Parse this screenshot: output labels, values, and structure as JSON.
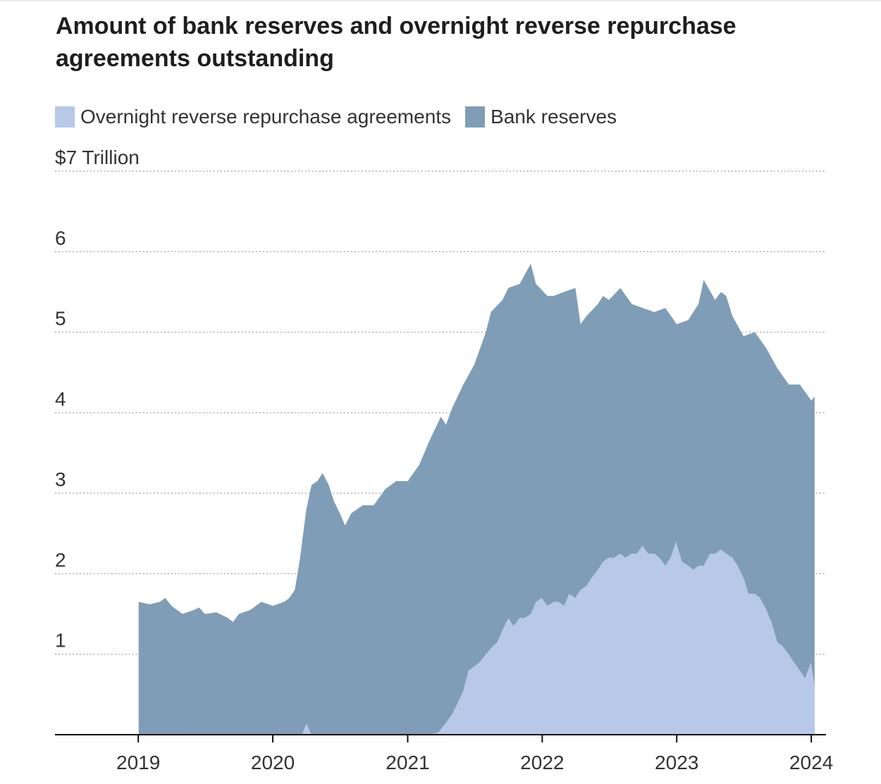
{
  "chart_data": {
    "type": "area",
    "stacked": true,
    "title": "Amount of bank reserves and overnight reverse repurchase agreements outstanding",
    "xlabel": "",
    "ylabel": "",
    "y_unit_label": "$7 Trillion",
    "xlim": [
      "2018-05-20",
      "2024-02-10"
    ],
    "ylim": [
      0,
      7
    ],
    "x_ticks": [
      "2019",
      "2020",
      "2021",
      "2022",
      "2023",
      "2024"
    ],
    "y_ticks": [
      "1",
      "2",
      "3",
      "4",
      "5",
      "6"
    ],
    "grid": true,
    "legend_position": "top-left",
    "series": [
      {
        "name": "Overnight reverse repurchase agreements",
        "color": "#b8c8e8",
        "points": [
          [
            "2019-01-02",
            0
          ],
          [
            "2019-06-01",
            0.01
          ],
          [
            "2019-12-31",
            0.01
          ],
          [
            "2020-03-20",
            0
          ],
          [
            "2020-04-01",
            0.14
          ],
          [
            "2020-04-15",
            0
          ],
          [
            "2021-03-01",
            0
          ],
          [
            "2021-03-25",
            0.03
          ],
          [
            "2021-04-15",
            0.15
          ],
          [
            "2021-05-01",
            0.25
          ],
          [
            "2021-05-15",
            0.38
          ],
          [
            "2021-06-01",
            0.55
          ],
          [
            "2021-06-15",
            0.8
          ],
          [
            "2021-07-01",
            0.85
          ],
          [
            "2021-07-15",
            0.9
          ],
          [
            "2021-08-01",
            1.0
          ],
          [
            "2021-08-20",
            1.1
          ],
          [
            "2021-09-01",
            1.15
          ],
          [
            "2021-09-15",
            1.3
          ],
          [
            "2021-10-01",
            1.45
          ],
          [
            "2021-10-15",
            1.35
          ],
          [
            "2021-11-01",
            1.45
          ],
          [
            "2021-11-15",
            1.45
          ],
          [
            "2021-12-01",
            1.5
          ],
          [
            "2021-12-15",
            1.65
          ],
          [
            "2021-12-31",
            1.7
          ],
          [
            "2022-01-15",
            1.6
          ],
          [
            "2022-02-01",
            1.65
          ],
          [
            "2022-02-15",
            1.65
          ],
          [
            "2022-03-01",
            1.6
          ],
          [
            "2022-03-15",
            1.75
          ],
          [
            "2022-04-01",
            1.7
          ],
          [
            "2022-04-15",
            1.8
          ],
          [
            "2022-05-01",
            1.85
          ],
          [
            "2022-05-15",
            1.95
          ],
          [
            "2022-06-01",
            2.05
          ],
          [
            "2022-06-15",
            2.15
          ],
          [
            "2022-07-01",
            2.2
          ],
          [
            "2022-07-15",
            2.2
          ],
          [
            "2022-08-01",
            2.25
          ],
          [
            "2022-08-15",
            2.2
          ],
          [
            "2022-09-01",
            2.25
          ],
          [
            "2022-09-15",
            2.25
          ],
          [
            "2022-09-30",
            2.35
          ],
          [
            "2022-10-15",
            2.25
          ],
          [
            "2022-11-01",
            2.25
          ],
          [
            "2022-11-15",
            2.2
          ],
          [
            "2022-12-01",
            2.1
          ],
          [
            "2022-12-15",
            2.2
          ],
          [
            "2022-12-30",
            2.4
          ],
          [
            "2023-01-15",
            2.15
          ],
          [
            "2023-02-01",
            2.1
          ],
          [
            "2023-02-15",
            2.05
          ],
          [
            "2023-03-01",
            2.1
          ],
          [
            "2023-03-15",
            2.1
          ],
          [
            "2023-04-01",
            2.25
          ],
          [
            "2023-04-15",
            2.25
          ],
          [
            "2023-05-01",
            2.3
          ],
          [
            "2023-05-15",
            2.25
          ],
          [
            "2023-06-01",
            2.2
          ],
          [
            "2023-06-15",
            2.1
          ],
          [
            "2023-07-01",
            1.95
          ],
          [
            "2023-07-15",
            1.75
          ],
          [
            "2023-08-01",
            1.75
          ],
          [
            "2023-08-15",
            1.7
          ],
          [
            "2023-09-01",
            1.55
          ],
          [
            "2023-09-15",
            1.4
          ],
          [
            "2023-10-01",
            1.15
          ],
          [
            "2023-10-15",
            1.1
          ],
          [
            "2023-11-01",
            1.0
          ],
          [
            "2023-11-15",
            0.9
          ],
          [
            "2023-12-01",
            0.8
          ],
          [
            "2023-12-15",
            0.7
          ],
          [
            "2023-12-31",
            0.9
          ],
          [
            "2024-01-10",
            0.6
          ]
        ]
      },
      {
        "name": "Bank reserves",
        "color": "#7f9db6",
        "points": [
          [
            "2019-01-02",
            1.65
          ],
          [
            "2019-02-01",
            1.62
          ],
          [
            "2019-03-01",
            1.65
          ],
          [
            "2019-03-15",
            1.7
          ],
          [
            "2019-04-01",
            1.6
          ],
          [
            "2019-05-01",
            1.5
          ],
          [
            "2019-06-01",
            1.55
          ],
          [
            "2019-06-15",
            1.58
          ],
          [
            "2019-07-01",
            1.5
          ],
          [
            "2019-08-01",
            1.52
          ],
          [
            "2019-09-01",
            1.45
          ],
          [
            "2019-09-15",
            1.4
          ],
          [
            "2019-10-01",
            1.5
          ],
          [
            "2019-11-01",
            1.55
          ],
          [
            "2019-12-01",
            1.65
          ],
          [
            "2020-01-01",
            1.6
          ],
          [
            "2020-02-01",
            1.65
          ],
          [
            "2020-02-15",
            1.7
          ],
          [
            "2020-03-01",
            1.8
          ],
          [
            "2020-03-15",
            2.2
          ],
          [
            "2020-04-01",
            2.8
          ],
          [
            "2020-04-15",
            3.1
          ],
          [
            "2020-05-01",
            3.15
          ],
          [
            "2020-05-15",
            3.25
          ],
          [
            "2020-06-01",
            3.1
          ],
          [
            "2020-06-15",
            2.9
          ],
          [
            "2020-07-01",
            2.75
          ],
          [
            "2020-07-15",
            2.6
          ],
          [
            "2020-08-01",
            2.75
          ],
          [
            "2020-09-01",
            2.85
          ],
          [
            "2020-10-01",
            2.85
          ],
          [
            "2020-11-01",
            3.05
          ],
          [
            "2020-12-01",
            3.15
          ],
          [
            "2021-01-01",
            3.15
          ],
          [
            "2021-02-01",
            3.35
          ],
          [
            "2021-03-01",
            3.65
          ],
          [
            "2021-04-01",
            3.95
          ],
          [
            "2021-04-15",
            3.85
          ],
          [
            "2021-05-01",
            4.05
          ],
          [
            "2021-06-01",
            4.35
          ],
          [
            "2021-07-01",
            4.6
          ],
          [
            "2021-08-01",
            5.0
          ],
          [
            "2021-08-15",
            5.25
          ],
          [
            "2021-09-15",
            5.4
          ],
          [
            "2021-10-01",
            5.55
          ],
          [
            "2021-11-01",
            5.6
          ],
          [
            "2021-12-01",
            5.85
          ],
          [
            "2021-12-15",
            5.6
          ],
          [
            "2022-01-15",
            5.45
          ],
          [
            "2022-02-01",
            5.45
          ],
          [
            "2022-03-01",
            5.5
          ],
          [
            "2022-04-01",
            5.55
          ],
          [
            "2022-04-15",
            5.1
          ],
          [
            "2022-05-01",
            5.2
          ],
          [
            "2022-06-01",
            5.35
          ],
          [
            "2022-06-15",
            5.45
          ],
          [
            "2022-07-01",
            5.4
          ],
          [
            "2022-08-01",
            5.55
          ],
          [
            "2022-09-01",
            5.35
          ],
          [
            "2022-10-01",
            5.3
          ],
          [
            "2022-11-01",
            5.25
          ],
          [
            "2022-12-01",
            5.3
          ],
          [
            "2023-01-01",
            5.1
          ],
          [
            "2023-02-01",
            5.15
          ],
          [
            "2023-03-01",
            5.35
          ],
          [
            "2023-03-15",
            5.65
          ],
          [
            "2023-04-15",
            5.4
          ],
          [
            "2023-05-01",
            5.5
          ],
          [
            "2023-05-15",
            5.45
          ],
          [
            "2023-06-01",
            5.2
          ],
          [
            "2023-07-01",
            4.95
          ],
          [
            "2023-08-01",
            5.0
          ],
          [
            "2023-09-01",
            4.8
          ],
          [
            "2023-10-01",
            4.55
          ],
          [
            "2023-11-01",
            4.35
          ],
          [
            "2023-12-01",
            4.35
          ],
          [
            "2024-01-01",
            4.15
          ],
          [
            "2024-01-10",
            4.2
          ]
        ]
      }
    ]
  }
}
